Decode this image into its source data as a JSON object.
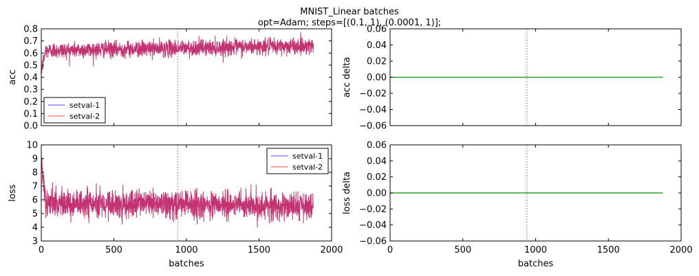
{
  "figure": {
    "title_line1": "MNIST_Linear batches",
    "title_line2": "opt=Adam; steps=[(0.1, 1), (0.0001, 1)];"
  },
  "chart_data": [
    {
      "type": "line",
      "panel": "acc",
      "title": "",
      "xlabel": "",
      "ylabel": "acc",
      "xlim": [
        0,
        2000
      ],
      "ylim": [
        0.0,
        0.8
      ],
      "yticks": [
        "0.0",
        "0.1",
        "0.2",
        "0.3",
        "0.4",
        "0.5",
        "0.6",
        "0.7",
        "0.8"
      ],
      "xticks_visible": false,
      "vline_x": 940,
      "legend": "lower-left",
      "series": [
        {
          "name": "setval-1",
          "color": "#4444ff",
          "n_points": 1875,
          "start": 0.45,
          "mean_start": 0.62,
          "mean_end": 0.66,
          "amplitude": 0.06
        },
        {
          "name": "setval-2",
          "color": "#ff4444",
          "n_points": 1875,
          "start": 0.45,
          "mean_start": 0.62,
          "mean_end": 0.66,
          "amplitude": 0.06
        }
      ],
      "overlap_color": "#c0286a"
    },
    {
      "type": "line",
      "panel": "acc_delta",
      "title": "",
      "xlabel": "",
      "ylabel": "acc delta",
      "xlim": [
        0,
        2000
      ],
      "ylim": [
        -0.06,
        0.06
      ],
      "yticks": [
        "−0.06",
        "−0.04",
        "−0.02",
        "0.00",
        "0.02",
        "0.04",
        "0.06"
      ],
      "xticks_visible": false,
      "vline_x": 940,
      "series": [
        {
          "name": "",
          "color": "#2ca02c",
          "x": [
            0,
            1875
          ],
          "y": [
            0.0,
            0.0
          ]
        }
      ]
    },
    {
      "type": "line",
      "panel": "loss",
      "title": "",
      "xlabel": "batches",
      "ylabel": "loss",
      "xlim": [
        0,
        2000
      ],
      "ylim": [
        3,
        10
      ],
      "yticks": [
        "3",
        "4",
        "5",
        "6",
        "7",
        "8",
        "9",
        "10"
      ],
      "xticks": [
        "0",
        "500",
        "1000",
        "1500",
        "2000"
      ],
      "vline_x": 940,
      "legend": "upper-right",
      "series": [
        {
          "name": "setval-1",
          "color": "#4444ff",
          "n_points": 1875,
          "start": 8.5,
          "mean_start": 5.8,
          "mean_end": 5.5,
          "amplitude": 0.9
        },
        {
          "name": "setval-2",
          "color": "#ff4444",
          "n_points": 1875,
          "start": 8.5,
          "mean_start": 5.8,
          "mean_end": 5.5,
          "amplitude": 0.9
        }
      ],
      "overlap_color": "#c0286a"
    },
    {
      "type": "line",
      "panel": "loss_delta",
      "title": "",
      "xlabel": "batches",
      "ylabel": "loss delta",
      "xlim": [
        0,
        2000
      ],
      "ylim": [
        -0.06,
        0.06
      ],
      "yticks": [
        "−0.06",
        "−0.04",
        "−0.02",
        "0.00",
        "0.02",
        "0.04",
        "0.06"
      ],
      "xticks": [
        "0",
        "500",
        "1000",
        "1500",
        "2000"
      ],
      "vline_x": 940,
      "series": [
        {
          "name": "",
          "color": "#2ca02c",
          "x": [
            0,
            1875
          ],
          "y": [
            0.0,
            0.0
          ]
        }
      ]
    }
  ],
  "colors": {
    "vline": "#d660b0"
  }
}
